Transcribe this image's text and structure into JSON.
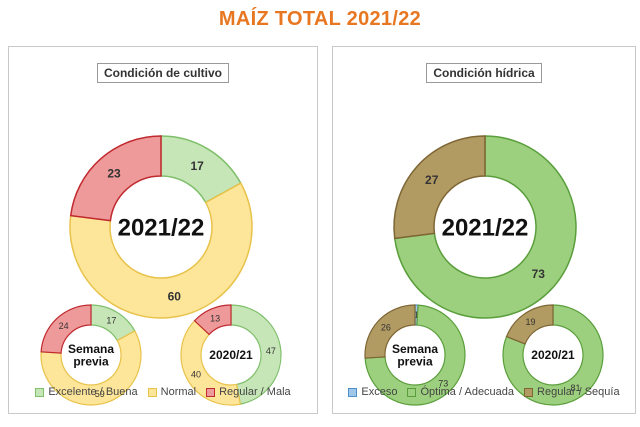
{
  "title": "MAÍZ TOTAL 2021/22",
  "chart_data": [
    {
      "type": "pie",
      "panel_title": "Condición de cultivo",
      "legend": [
        {
          "label": "Excelente / Buena",
          "color": "#c6e6b8",
          "stroke": "#7fbf6a"
        },
        {
          "label": "Normal",
          "color": "#fde69a",
          "stroke": "#e8c24a"
        },
        {
          "label": "Regular / Mala",
          "color": "#ee9a9a",
          "stroke": "#c0292f"
        }
      ],
      "donuts": [
        {
          "center_label": [
            "2021/22"
          ],
          "values": [
            17,
            60,
            23
          ]
        },
        {
          "center_label": [
            "Semana",
            "previa"
          ],
          "values": [
            17,
            59,
            24
          ]
        },
        {
          "center_label": [
            "2020/21"
          ],
          "values": [
            47,
            40,
            13
          ]
        }
      ]
    },
    {
      "type": "pie",
      "panel_title": "Condición hídrica",
      "legend": [
        {
          "label": "Exceso",
          "color": "#9ec7ea",
          "stroke": "#4f8fc7"
        },
        {
          "label": "Óptima / Adecuada",
          "color": "#9dd07e",
          "stroke": "#5a9e3b"
        },
        {
          "label": "Regular / Sequía",
          "color": "#b29b63",
          "stroke": "#7d6634"
        }
      ],
      "donuts": [
        {
          "center_label": [
            "2021/22"
          ],
          "values": [
            0,
            73,
            27
          ]
        },
        {
          "center_label": [
            "Semana",
            "previa"
          ],
          "values": [
            1,
            73,
            26
          ]
        },
        {
          "center_label": [
            "2020/21"
          ],
          "values": [
            0,
            81,
            19
          ]
        }
      ]
    }
  ]
}
